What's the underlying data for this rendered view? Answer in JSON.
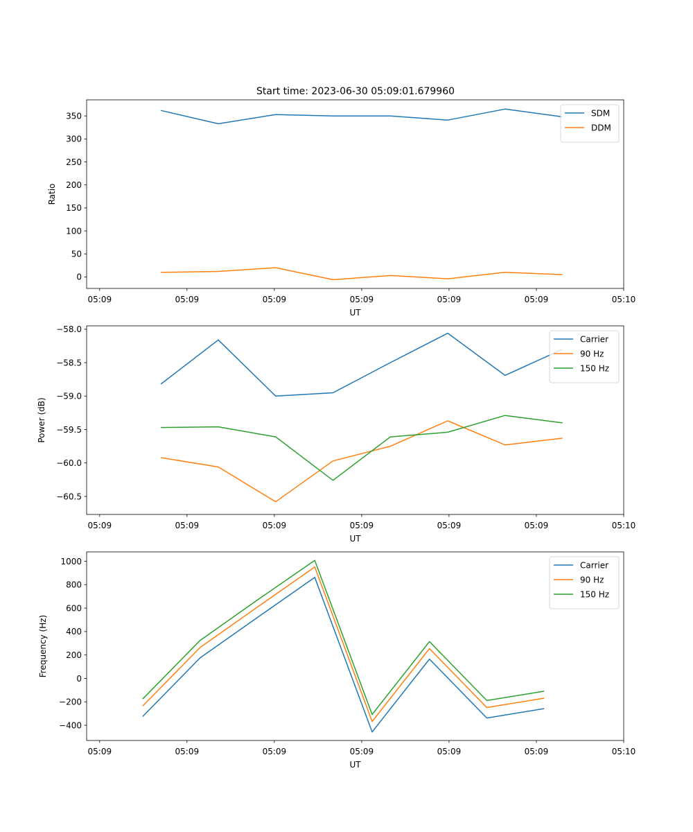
{
  "figure_title": "Start time: 2023-06-30 05:09:01.679960",
  "colors": {
    "series1": "#1f77b4",
    "series2": "#ff7f0e",
    "series3": "#2ca02c"
  },
  "chart_data": [
    {
      "type": "line",
      "title": "Start time: 2023-06-30 05:09:01.679960",
      "xlabel": "UT",
      "ylabel": "Ratio",
      "x": [
        0.47,
        0.91,
        1.35,
        1.79,
        2.23,
        2.67,
        3.11,
        3.55
      ],
      "x_ticks": [
        0,
        0.67,
        1.34,
        2.01,
        2.68,
        3.35,
        4.02
      ],
      "x_tick_labels": [
        "05:09",
        "05:09",
        "05:09",
        "05:09",
        "05:09",
        "05:09",
        "05:10"
      ],
      "xlim": [
        -0.1,
        4.02
      ],
      "ylim": [
        -25,
        385
      ],
      "y_ticks": [
        0,
        50,
        100,
        150,
        200,
        250,
        300,
        350
      ],
      "y_tick_labels": [
        "0",
        "50",
        "100",
        "150",
        "200",
        "250",
        "300",
        "350"
      ],
      "series": [
        {
          "name": "SDM",
          "values": [
            362,
            333,
            353,
            350,
            350,
            341,
            365,
            348
          ]
        },
        {
          "name": "DDM",
          "values": [
            10,
            12,
            20,
            -6,
            3,
            -4,
            10,
            5
          ]
        }
      ],
      "legend": "upper right",
      "grid": false
    },
    {
      "type": "line",
      "xlabel": "UT",
      "ylabel": "Power (dB)",
      "x": [
        0.47,
        0.91,
        1.35,
        1.79,
        2.23,
        2.67,
        3.11,
        3.55
      ],
      "x_ticks": [
        0,
        0.67,
        1.34,
        2.01,
        2.68,
        3.35,
        4.02
      ],
      "x_tick_labels": [
        "05:09",
        "05:09",
        "05:09",
        "05:09",
        "05:09",
        "05:09",
        "05:10"
      ],
      "xlim": [
        -0.1,
        4.02
      ],
      "ylim": [
        -60.77,
        -57.95
      ],
      "y_ticks": [
        -60.5,
        -60.0,
        -59.5,
        -59.0,
        -58.5,
        -58.0
      ],
      "y_tick_labels": [
        "−60.5",
        "−60.0",
        "−59.5",
        "−59.0",
        "−58.5",
        "−58.0"
      ],
      "series": [
        {
          "name": "Carrier",
          "values": [
            -58.82,
            -58.16,
            -59.0,
            -58.95,
            -58.5,
            -58.06,
            -58.69,
            -58.3
          ]
        },
        {
          "name": "90 Hz",
          "values": [
            -59.92,
            -60.06,
            -60.58,
            -59.97,
            -59.75,
            -59.37,
            -59.73,
            -59.63
          ]
        },
        {
          "name": "150 Hz",
          "values": [
            -59.47,
            -59.46,
            -59.61,
            -60.26,
            -59.61,
            -59.54,
            -59.29,
            -59.4
          ]
        }
      ],
      "legend": "upper right",
      "grid": false
    },
    {
      "type": "line",
      "xlabel": "UT",
      "ylabel": "Frequency (Hz)",
      "x": [
        0.33,
        0.77,
        1.21,
        1.65,
        2.09,
        2.53,
        2.97,
        3.41
      ],
      "x_ticks": [
        0,
        0.67,
        1.34,
        2.01,
        2.68,
        3.35,
        4.02
      ],
      "x_tick_labels": [
        "05:09",
        "05:09",
        "05:09",
        "05:09",
        "05:09",
        "05:09",
        "05:10"
      ],
      "xlim": [
        -0.1,
        4.02
      ],
      "ylim": [
        -530,
        1080
      ],
      "y_ticks": [
        -400,
        -200,
        0,
        200,
        400,
        600,
        800,
        1000
      ],
      "y_tick_labels": [
        "−400",
        "−200",
        "0",
        "200",
        "400",
        "600",
        "800",
        "1000"
      ],
      "series": [
        {
          "name": "Carrier",
          "values": [
            -325,
            175,
            520,
            862,
            -457,
            165,
            -338,
            -258
          ]
        },
        {
          "name": "90 Hz",
          "values": [
            -236,
            264,
            609,
            951,
            -368,
            254,
            -249,
            -169
          ]
        },
        {
          "name": "150 Hz",
          "values": [
            -176,
            324,
            669,
            1008,
            -308,
            314,
            -189,
            -109
          ]
        }
      ],
      "legend": "upper right",
      "grid": false
    }
  ]
}
